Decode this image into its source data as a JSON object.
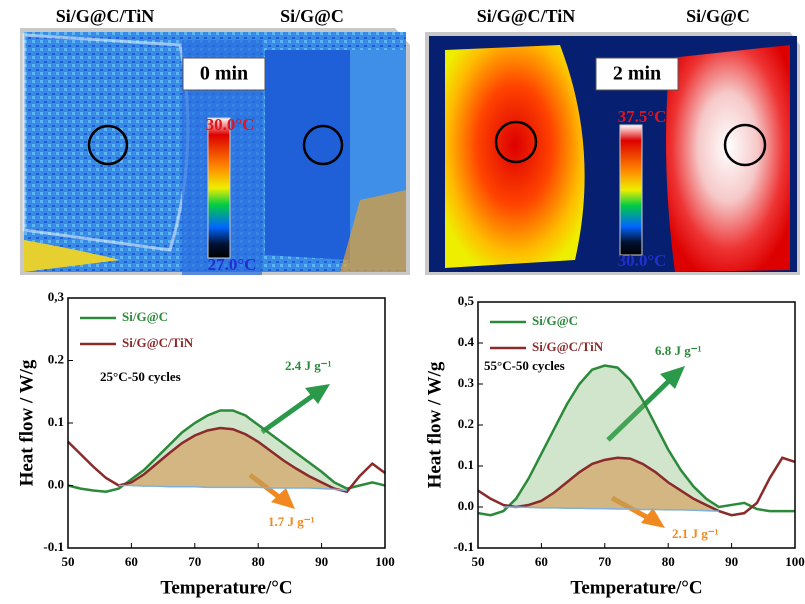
{
  "thermal": [
    {
      "labels": [
        "Si/G@C/TiN",
        "Si/G@C"
      ],
      "time": "0 min",
      "max_label": "30.0°C",
      "min_label": "27.0°C"
    },
    {
      "labels": [
        "Si/G@C/TiN",
        "Si/G@C"
      ],
      "time": "2 min",
      "max_label": "37.5°C",
      "min_label": "30.0°C"
    }
  ],
  "chart_data": [
    {
      "type": "line",
      "xlabel": "Temperature/°C",
      "ylabel": "Heat flow / W/g",
      "x": [
        50,
        52,
        54,
        56,
        58,
        60,
        62,
        64,
        66,
        68,
        70,
        72,
        74,
        76,
        78,
        80,
        82,
        84,
        86,
        88,
        90,
        92,
        94,
        96,
        98,
        100
      ],
      "xlim": [
        50,
        100
      ],
      "xticks": [
        50,
        60,
        70,
        80,
        90,
        100
      ],
      "ylim": [
        -0.1,
        0.3
      ],
      "yticks": [
        -0.1,
        {
          "value": 0,
          "label": "0.0"
        },
        0.1,
        0.2,
        {
          "value": 0.3,
          "label": "0,3"
        }
      ],
      "series": [
        {
          "name": "Si/G@C",
          "color": "#2a8a3a",
          "fill": "rgba(120,180,110,0.35)",
          "values": [
            0.0,
            -0.005,
            -0.008,
            -0.01,
            -0.005,
            0.01,
            0.025,
            0.045,
            0.065,
            0.085,
            0.1,
            0.112,
            0.12,
            0.12,
            0.112,
            0.097,
            0.082,
            0.067,
            0.052,
            0.037,
            0.022,
            0.005,
            -0.005,
            0.0,
            0.005,
            0.0
          ]
        },
        {
          "name": "Si/G@C/TiN",
          "color": "#8b2a2a",
          "fill": "rgba(215,150,80,0.6)",
          "values": [
            0.07,
            0.05,
            0.03,
            0.012,
            0.0,
            0.005,
            0.018,
            0.035,
            0.052,
            0.068,
            0.08,
            0.088,
            0.092,
            0.09,
            0.082,
            0.07,
            0.055,
            0.04,
            0.027,
            0.015,
            0.005,
            -0.005,
            -0.01,
            0.015,
            0.035,
            0.02
          ]
        },
        {
          "color": "#7fb0d8",
          "values": [
            null,
            null,
            null,
            null,
            0.0,
            0.0,
            -0.001,
            -0.001,
            -0.002,
            -0.002,
            -0.002,
            -0.003,
            -0.003,
            -0.003,
            -0.003,
            -0.003,
            -0.004,
            -0.004,
            -0.004,
            -0.004,
            -0.005,
            -0.006,
            -0.008,
            null,
            null,
            null
          ]
        }
      ],
      "annotations": [
        "2.4 J g⁻¹",
        "1.7 J g⁻¹",
        "25°C-50 cycles"
      ]
    },
    {
      "type": "line",
      "xlabel": "Temperature/°C",
      "ylabel": "Heat flow / W/g",
      "x": [
        50,
        52,
        54,
        56,
        58,
        60,
        62,
        64,
        66,
        68,
        70,
        72,
        74,
        76,
        78,
        80,
        82,
        84,
        86,
        88,
        90,
        92,
        94,
        96,
        98,
        100
      ],
      "xlim": [
        50,
        100
      ],
      "xticks": [
        50,
        60,
        70,
        80,
        90,
        100
      ],
      "ylim": [
        -0.1,
        0.5
      ],
      "yticks": [
        -0.1,
        {
          "value": 0,
          "label": "0.0"
        },
        0.1,
        0.2,
        0.3,
        0.4,
        {
          "value": 0.5,
          "label": "0,5"
        }
      ],
      "series": [
        {
          "name": "Si/G@C",
          "color": "#2a8a3a",
          "fill": "rgba(120,180,110,0.35)",
          "values": [
            -0.015,
            -0.02,
            -0.01,
            0.02,
            0.07,
            0.13,
            0.19,
            0.25,
            0.3,
            0.335,
            0.345,
            0.34,
            0.31,
            0.26,
            0.2,
            0.14,
            0.09,
            0.05,
            0.02,
            0.0,
            0.005,
            0.01,
            -0.005,
            -0.01,
            -0.01,
            -0.01
          ]
        },
        {
          "name": "Si/G@C/TiN",
          "color": "#8b2a2a",
          "fill": "rgba(215,150,80,0.6)",
          "values": [
            0.04,
            0.02,
            0.005,
            0.0,
            0.005,
            0.015,
            0.035,
            0.06,
            0.085,
            0.105,
            0.115,
            0.12,
            0.118,
            0.105,
            0.085,
            0.06,
            0.04,
            0.02,
            0.005,
            -0.01,
            -0.02,
            -0.015,
            0.01,
            0.07,
            0.12,
            0.11
          ]
        },
        {
          "color": "#7fb0d8",
          "values": [
            null,
            null,
            0.0,
            0.0,
            -0.001,
            -0.002,
            -0.002,
            -0.003,
            -0.003,
            -0.004,
            -0.004,
            -0.005,
            -0.005,
            -0.006,
            -0.006,
            -0.007,
            -0.007,
            -0.008,
            -0.009,
            -0.01,
            null,
            null,
            null,
            null,
            null,
            null
          ]
        }
      ],
      "annotations": [
        "6.8 J g⁻¹",
        "2.1 J g⁻¹",
        "55°C-50 cycles"
      ]
    }
  ]
}
